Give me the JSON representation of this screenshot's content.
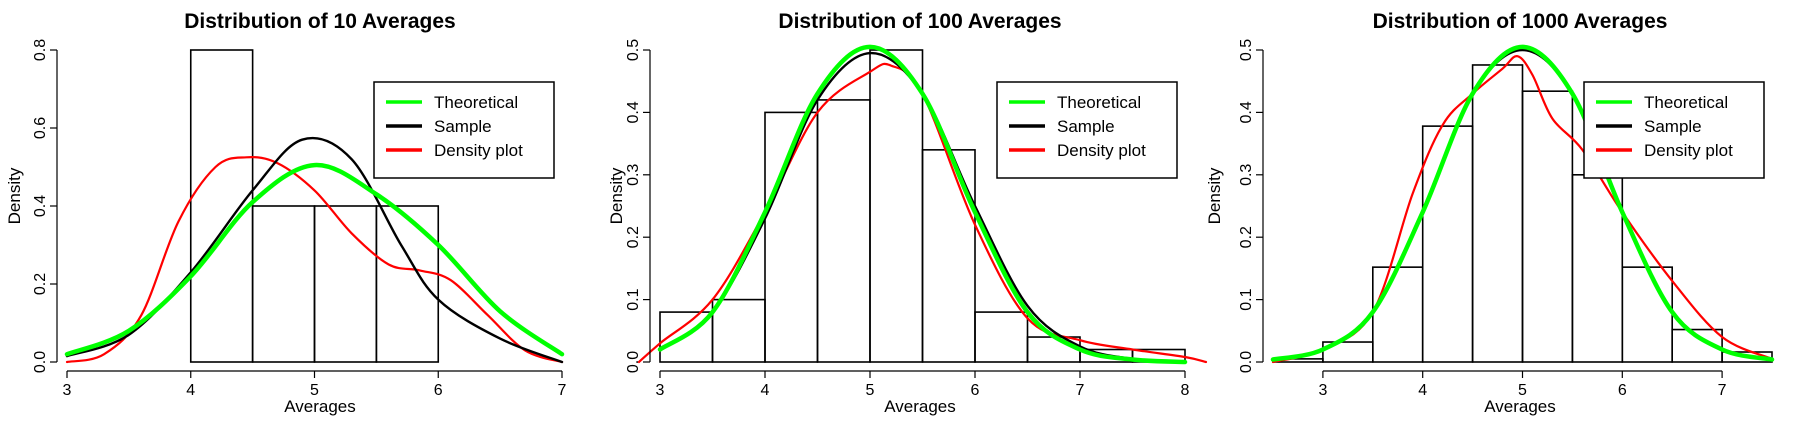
{
  "chart_data": [
    {
      "type": "bar",
      "title": "Distribution of 10 Averages",
      "xlabel": "Averages",
      "ylabel": "Density",
      "xlim": [
        3,
        7
      ],
      "ylim": [
        0,
        0.8
      ],
      "xticks": [
        "3",
        "4",
        "5",
        "6",
        "7"
      ],
      "yticks": [
        "0.0",
        "0.2",
        "0.4",
        "0.6",
        "0.8"
      ],
      "histogram": {
        "bins": [
          [
            4,
            4.5
          ],
          [
            4.5,
            5
          ],
          [
            5,
            5.5
          ],
          [
            5.5,
            6
          ]
        ],
        "density": [
          0.8,
          0.4,
          0.4,
          0.4
        ]
      },
      "legend": {
        "position": "top-right",
        "entries": [
          {
            "label": "Theoretical",
            "color": "#00ff00"
          },
          {
            "label": "Sample",
            "color": "#000000"
          },
          {
            "label": "Density plot",
            "color": "#ff0000"
          }
        ]
      },
      "series": [
        {
          "name": "Theoretical",
          "color": "#00ff00",
          "x": [
            3.0,
            3.5,
            4.0,
            4.5,
            5.0,
            5.5,
            6.0,
            6.5,
            7.0
          ],
          "y": [
            0.02,
            0.08,
            0.22,
            0.41,
            0.505,
            0.43,
            0.3,
            0.13,
            0.02
          ]
        },
        {
          "name": "Sample",
          "color": "#000000",
          "x": [
            3.0,
            3.5,
            4.0,
            4.5,
            4.9,
            5.3,
            5.7,
            6.0,
            6.5,
            7.0
          ],
          "y": [
            0.015,
            0.07,
            0.23,
            0.44,
            0.57,
            0.52,
            0.3,
            0.16,
            0.06,
            0.0
          ]
        },
        {
          "name": "Density plot",
          "color": "#ff0000",
          "x": [
            3.0,
            3.3,
            3.6,
            3.9,
            4.2,
            4.45,
            4.7,
            5.0,
            5.3,
            5.6,
            5.85,
            6.1,
            6.4,
            6.7,
            7.0
          ],
          "y": [
            0.0,
            0.02,
            0.12,
            0.36,
            0.5,
            0.525,
            0.51,
            0.44,
            0.33,
            0.25,
            0.235,
            0.21,
            0.12,
            0.03,
            0.0
          ]
        }
      ]
    },
    {
      "type": "bar",
      "title": "Distribution of 100 Averages",
      "xlabel": "Averages",
      "ylabel": "Density",
      "xlim": [
        3,
        8
      ],
      "ylim": [
        0,
        0.5
      ],
      "xticks": [
        "3",
        "4",
        "5",
        "6",
        "7",
        "8"
      ],
      "yticks": [
        "0.0",
        "0.1",
        "0.2",
        "0.3",
        "0.4",
        "0.5"
      ],
      "histogram": {
        "bins": [
          [
            3,
            3.5
          ],
          [
            3.5,
            4
          ],
          [
            4,
            4.5
          ],
          [
            4.5,
            5
          ],
          [
            5,
            5.5
          ],
          [
            5.5,
            6
          ],
          [
            6,
            6.5
          ],
          [
            6.5,
            7
          ],
          [
            7,
            7.5
          ],
          [
            7.5,
            8
          ]
        ],
        "density": [
          0.08,
          0.1,
          0.4,
          0.42,
          0.5,
          0.34,
          0.08,
          0.04,
          0.02,
          0.02
        ]
      },
      "legend": {
        "position": "top-right",
        "entries": [
          {
            "label": "Theoretical",
            "color": "#00ff00"
          },
          {
            "label": "Sample",
            "color": "#000000"
          },
          {
            "label": "Density plot",
            "color": "#ff0000"
          }
        ]
      },
      "series": [
        {
          "name": "Theoretical",
          "color": "#00ff00",
          "x": [
            3.0,
            3.5,
            4.0,
            4.5,
            5.0,
            5.5,
            6.0,
            6.5,
            7.0,
            7.5,
            8.0
          ],
          "y": [
            0.02,
            0.08,
            0.24,
            0.43,
            0.505,
            0.43,
            0.24,
            0.08,
            0.02,
            0.004,
            0.0
          ]
        },
        {
          "name": "Sample",
          "color": "#000000",
          "x": [
            3.0,
            3.5,
            4.0,
            4.5,
            5.0,
            5.5,
            6.0,
            6.5,
            7.0,
            7.5,
            8.0
          ],
          "y": [
            0.02,
            0.08,
            0.23,
            0.42,
            0.495,
            0.43,
            0.25,
            0.09,
            0.025,
            0.005,
            0.0
          ]
        },
        {
          "name": "Density plot",
          "color": "#ff0000",
          "x": [
            2.8,
            3.0,
            3.5,
            4.0,
            4.5,
            5.0,
            5.2,
            5.5,
            6.0,
            6.5,
            7.0,
            7.5,
            8.0,
            8.2
          ],
          "y": [
            0.0,
            0.03,
            0.1,
            0.24,
            0.4,
            0.465,
            0.475,
            0.43,
            0.22,
            0.07,
            0.035,
            0.02,
            0.008,
            0.0
          ]
        }
      ]
    },
    {
      "type": "bar",
      "title": "Distribution of 1000 Averages",
      "xlabel": "Averages",
      "ylabel": "Density",
      "xlim": [
        2.5,
        7.5
      ],
      "ylim": [
        0,
        0.5
      ],
      "xticks": [
        "3",
        "4",
        "5",
        "6",
        "7"
      ],
      "yticks": [
        "0.0",
        "0.1",
        "0.2",
        "0.3",
        "0.4",
        "0.5"
      ],
      "histogram": {
        "bins": [
          [
            2.5,
            3
          ],
          [
            3,
            3.5
          ],
          [
            3.5,
            4
          ],
          [
            4,
            4.5
          ],
          [
            4.5,
            5
          ],
          [
            5,
            5.5
          ],
          [
            5.5,
            6
          ],
          [
            6,
            6.5
          ],
          [
            6.5,
            7
          ],
          [
            7,
            7.5
          ]
        ],
        "density": [
          0.005,
          0.032,
          0.152,
          0.378,
          0.476,
          0.434,
          0.3,
          0.152,
          0.052,
          0.016
        ]
      },
      "legend": {
        "position": "top-right",
        "entries": [
          {
            "label": "Theoretical",
            "color": "#00ff00"
          },
          {
            "label": "Sample",
            "color": "#000000"
          },
          {
            "label": "Density plot",
            "color": "#ff0000"
          }
        ]
      },
      "series": [
        {
          "name": "Theoretical",
          "color": "#00ff00",
          "x": [
            2.5,
            3.0,
            3.5,
            4.0,
            4.5,
            5.0,
            5.5,
            6.0,
            6.5,
            7.0,
            7.5
          ],
          "y": [
            0.004,
            0.02,
            0.08,
            0.24,
            0.43,
            0.505,
            0.43,
            0.24,
            0.08,
            0.02,
            0.004
          ]
        },
        {
          "name": "Sample",
          "color": "#000000",
          "x": [
            2.5,
            3.0,
            3.5,
            4.0,
            4.5,
            5.0,
            5.5,
            6.0,
            6.5,
            7.0,
            7.5
          ],
          "y": [
            0.004,
            0.02,
            0.08,
            0.24,
            0.43,
            0.5,
            0.43,
            0.24,
            0.08,
            0.02,
            0.004
          ]
        },
        {
          "name": "Density plot",
          "color": "#ff0000",
          "x": [
            2.5,
            3.0,
            3.5,
            3.9,
            4.2,
            4.5,
            4.8,
            4.95,
            5.1,
            5.3,
            5.6,
            6.0,
            6.5,
            7.0,
            7.5
          ],
          "y": [
            0.0,
            0.02,
            0.08,
            0.27,
            0.38,
            0.43,
            0.47,
            0.49,
            0.46,
            0.39,
            0.34,
            0.24,
            0.13,
            0.04,
            0.005
          ]
        }
      ]
    }
  ]
}
